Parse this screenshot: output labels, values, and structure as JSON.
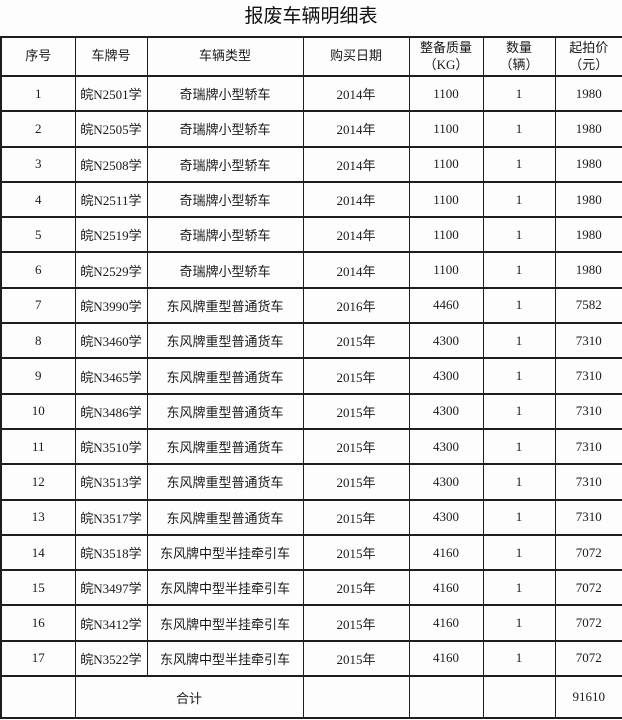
{
  "title": "报废车辆明细表",
  "table": {
    "headers": [
      {
        "label": "序号"
      },
      {
        "label": "车牌号"
      },
      {
        "label": "车辆类型"
      },
      {
        "label": "购买日期"
      },
      {
        "label": "整备质量",
        "label2": "（KG）"
      },
      {
        "label": "数量",
        "label2": "（辆）"
      },
      {
        "label": "起拍价",
        "label2": "（元）"
      }
    ],
    "rows": [
      {
        "no": "1",
        "plate": "皖N2501学",
        "type": "奇瑞牌小型轿车",
        "date": "2014年",
        "weight": "1100",
        "qty": "1",
        "price": "1980"
      },
      {
        "no": "2",
        "plate": "皖N2505学",
        "type": "奇瑞牌小型轿车",
        "date": "2014年",
        "weight": "1100",
        "qty": "1",
        "price": "1980"
      },
      {
        "no": "3",
        "plate": "皖N2508学",
        "type": "奇瑞牌小型轿车",
        "date": "2014年",
        "weight": "1100",
        "qty": "1",
        "price": "1980"
      },
      {
        "no": "4",
        "plate": "皖N2511学",
        "type": "奇瑞牌小型轿车",
        "date": "2014年",
        "weight": "1100",
        "qty": "1",
        "price": "1980"
      },
      {
        "no": "5",
        "plate": "皖N2519学",
        "type": "奇瑞牌小型轿车",
        "date": "2014年",
        "weight": "1100",
        "qty": "1",
        "price": "1980"
      },
      {
        "no": "6",
        "plate": "皖N2529学",
        "type": "奇瑞牌小型轿车",
        "date": "2014年",
        "weight": "1100",
        "qty": "1",
        "price": "1980"
      },
      {
        "no": "7",
        "plate": "皖N3990学",
        "type": "东风牌重型普通货车",
        "date": "2016年",
        "weight": "4460",
        "qty": "1",
        "price": "7582"
      },
      {
        "no": "8",
        "plate": "皖N3460学",
        "type": "东风牌重型普通货车",
        "date": "2015年",
        "weight": "4300",
        "qty": "1",
        "price": "7310"
      },
      {
        "no": "9",
        "plate": "皖N3465学",
        "type": "东风牌重型普通货车",
        "date": "2015年",
        "weight": "4300",
        "qty": "1",
        "price": "7310"
      },
      {
        "no": "10",
        "plate": "皖N3486学",
        "type": "东风牌重型普通货车",
        "date": "2015年",
        "weight": "4300",
        "qty": "1",
        "price": "7310"
      },
      {
        "no": "11",
        "plate": "皖N3510学",
        "type": "东风牌重型普通货车",
        "date": "2015年",
        "weight": "4300",
        "qty": "1",
        "price": "7310"
      },
      {
        "no": "12",
        "plate": "皖N3513学",
        "type": "东风牌重型普通货车",
        "date": "2015年",
        "weight": "4300",
        "qty": "1",
        "price": "7310"
      },
      {
        "no": "13",
        "plate": "皖N3517学",
        "type": "东风牌重型普通货车",
        "date": "2015年",
        "weight": "4300",
        "qty": "1",
        "price": "7310"
      },
      {
        "no": "14",
        "plate": "皖N3518学",
        "type": "东风牌中型半挂牵引车",
        "date": "2015年",
        "weight": "4160",
        "qty": "1",
        "price": "7072"
      },
      {
        "no": "15",
        "plate": "皖N3497学",
        "type": "东风牌中型半挂牵引车",
        "date": "2015年",
        "weight": "4160",
        "qty": "1",
        "price": "7072"
      },
      {
        "no": "16",
        "plate": "皖N3412学",
        "type": "东风牌中型半挂牵引车",
        "date": "2015年",
        "weight": "4160",
        "qty": "1",
        "price": "7072"
      },
      {
        "no": "17",
        "plate": "皖N3522学",
        "type": "东风牌中型半挂牵引车",
        "date": "2015年",
        "weight": "4160",
        "qty": "1",
        "price": "7072"
      }
    ],
    "total": {
      "no": "",
      "label": "合计",
      "date": "",
      "weight": "",
      "qty": "",
      "price": "91610"
    }
  }
}
